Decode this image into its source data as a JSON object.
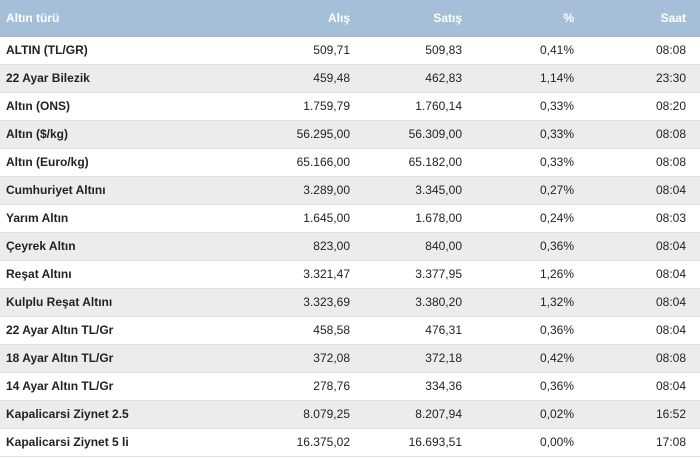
{
  "headers": {
    "name": "Altın türü",
    "alis": "Alış",
    "satis": "Satış",
    "pct": "%",
    "saat": "Saat"
  },
  "rows": [
    {
      "name": "ALTIN (TL/GR)",
      "alis": "509,71",
      "satis": "509,83",
      "pct": "0,41%",
      "saat": "08:08"
    },
    {
      "name": "22 Ayar Bilezik",
      "alis": "459,48",
      "satis": "462,83",
      "pct": "1,14%",
      "saat": "23:30"
    },
    {
      "name": "Altın (ONS)",
      "alis": "1.759,79",
      "satis": "1.760,14",
      "pct": "0,33%",
      "saat": "08:20"
    },
    {
      "name": "Altın ($/kg)",
      "alis": "56.295,00",
      "satis": "56.309,00",
      "pct": "0,33%",
      "saat": "08:08"
    },
    {
      "name": "Altın (Euro/kg)",
      "alis": "65.166,00",
      "satis": "65.182,00",
      "pct": "0,33%",
      "saat": "08:08"
    },
    {
      "name": "Cumhuriyet Altını",
      "alis": "3.289,00",
      "satis": "3.345,00",
      "pct": "0,27%",
      "saat": "08:04"
    },
    {
      "name": "Yarım Altın",
      "alis": "1.645,00",
      "satis": "1.678,00",
      "pct": "0,24%",
      "saat": "08:03"
    },
    {
      "name": "Çeyrek Altın",
      "alis": "823,00",
      "satis": "840,00",
      "pct": "0,36%",
      "saat": "08:04"
    },
    {
      "name": "Reşat Altını",
      "alis": "3.321,47",
      "satis": "3.377,95",
      "pct": "1,26%",
      "saat": "08:04"
    },
    {
      "name": "Kulplu Reşat Altını",
      "alis": "3.323,69",
      "satis": "3.380,20",
      "pct": "1,32%",
      "saat": "08:04"
    },
    {
      "name": "22 Ayar Altın TL/Gr",
      "alis": "458,58",
      "satis": "476,31",
      "pct": "0,36%",
      "saat": "08:04"
    },
    {
      "name": "18 Ayar Altın TL/Gr",
      "alis": "372,08",
      "satis": "372,18",
      "pct": "0,42%",
      "saat": "08:08"
    },
    {
      "name": "14 Ayar Altın TL/Gr",
      "alis": "278,76",
      "satis": "334,36",
      "pct": "0,36%",
      "saat": "08:04"
    },
    {
      "name": "Kapalicarsi Ziynet 2.5",
      "alis": "8.079,25",
      "satis": "8.207,94",
      "pct": "0,02%",
      "saat": "16:52"
    },
    {
      "name": "Kapalicarsi Ziynet 5 li",
      "alis": "16.375,02",
      "satis": "16.693,51",
      "pct": "0,00%",
      "saat": "17:08"
    }
  ]
}
